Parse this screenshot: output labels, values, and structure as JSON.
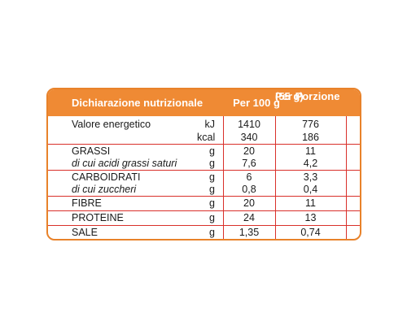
{
  "header": {
    "title": "Dichiarazione nutrizionale",
    "per100": "Per 100 g",
    "perPortion": "Per Porzione",
    "portionSize": "(55 g)"
  },
  "rows": [
    {
      "name": "Valore energetico",
      "unit": "kJ",
      "v100": "1410",
      "vPortion": "776"
    },
    {
      "name": "",
      "unit": "kcal",
      "v100": "340",
      "vPortion": "186"
    },
    {
      "name": "GRASSI",
      "unit": "g",
      "v100": "20",
      "vPortion": "11"
    },
    {
      "name": "di cui acidi grassi saturi",
      "unit": "g",
      "v100": "7,6",
      "vPortion": "4,2"
    },
    {
      "name": "CARBOIDRATI",
      "unit": "g",
      "v100": "6",
      "vPortion": "3,3"
    },
    {
      "name": "di cui zuccheri",
      "unit": "g",
      "v100": "0,8",
      "vPortion": "0,4"
    },
    {
      "name": "FIBRE",
      "unit": "g",
      "v100": "20",
      "vPortion": "11"
    },
    {
      "name": "PROTEINE",
      "unit": "g",
      "v100": "24",
      "vPortion": "13"
    },
    {
      "name": "SALE",
      "unit": "g",
      "v100": "1,35",
      "vPortion": "0,74"
    }
  ],
  "colors": {
    "header_bg": "#ef8a34",
    "border": "#e8822a",
    "grid": "#d9302a"
  }
}
